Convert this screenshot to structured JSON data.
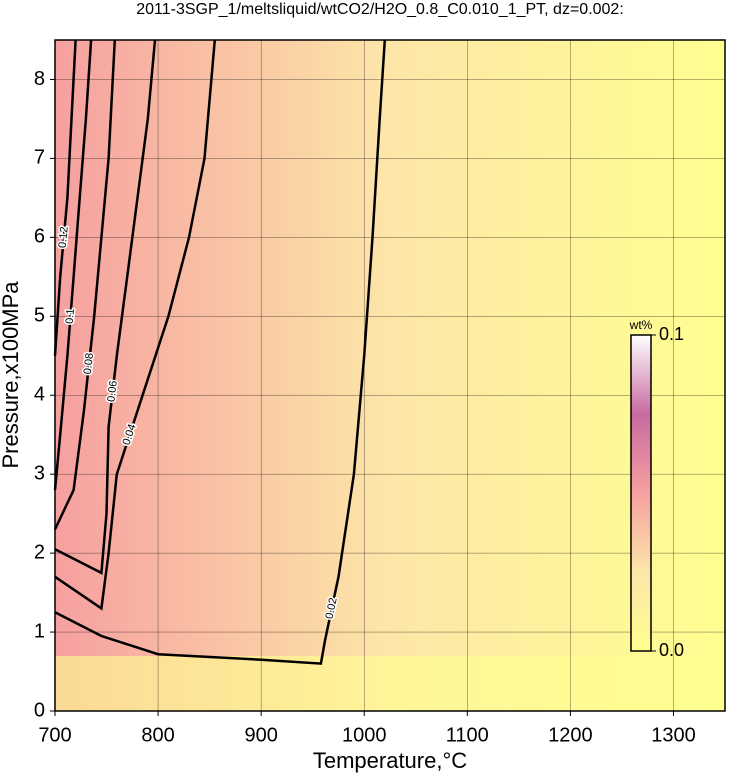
{
  "chart_data": {
    "type": "contour",
    "title": "2011-3SGP_1/meltsliquid/wtCO2/H2O_0.8_C0.010_1_PT, dz=0.002:",
    "x_label": "Temperature,°C",
    "y_label": "Pressure,x100MPa",
    "xlim": [
      700,
      1350
    ],
    "ylim": [
      0,
      8.5
    ],
    "xticks": [
      700,
      800,
      900,
      1000,
      1100,
      1200,
      1300
    ],
    "yticks": [
      0,
      1,
      2,
      3,
      4,
      5,
      6,
      7,
      8
    ],
    "grid": true,
    "colormap": [
      "#ffff90",
      "#fde6a8",
      "#f6a0a0",
      "#c86aa0",
      "#ffffff"
    ],
    "colorbar": {
      "label": "wt%",
      "lim": [
        0,
        0.1
      ],
      "ticks": [
        {
          "value": 0,
          "label": "0.0"
        },
        0.1
      ]
    },
    "contours": [
      {
        "level": 0.02,
        "x": [
          700,
          745,
          800,
          900,
          958,
          962,
          975,
          990,
          1000,
          1008,
          1015,
          1020
        ],
        "y": [
          1.25,
          0.95,
          0.72,
          0.65,
          0.6,
          0.9,
          1.7,
          3.0,
          4.5,
          6.0,
          7.5,
          8.5
        ]
      },
      {
        "level": 0.04,
        "x": [
          700,
          745,
          752,
          760,
          785,
          810,
          830,
          845,
          855
        ],
        "y": [
          1.7,
          1.3,
          2.0,
          3.0,
          4.0,
          5.0,
          6.0,
          7.0,
          8.5
        ]
      },
      {
        "level": 0.06,
        "x": [
          700,
          745,
          750,
          752,
          760,
          770,
          780,
          790,
          797
        ],
        "y": [
          2.05,
          1.75,
          2.5,
          3.6,
          4.5,
          5.5,
          6.5,
          7.5,
          8.5
        ]
      },
      {
        "level": 0.08,
        "x": [
          700,
          718,
          728,
          738,
          745,
          752,
          758
        ],
        "y": [
          2.3,
          2.8,
          3.8,
          5.0,
          6.0,
          7.0,
          8.5
        ]
      },
      {
        "level": 0.1,
        "x": [
          700,
          705,
          712,
          718,
          724,
          730,
          735
        ],
        "y": [
          2.8,
          3.5,
          4.5,
          5.5,
          6.5,
          7.5,
          8.5
        ]
      },
      {
        "level": 0.12,
        "x": [
          700,
          705,
          712,
          716,
          720
        ],
        "y": [
          4.5,
          5.5,
          6.5,
          7.5,
          8.5
        ]
      }
    ]
  }
}
